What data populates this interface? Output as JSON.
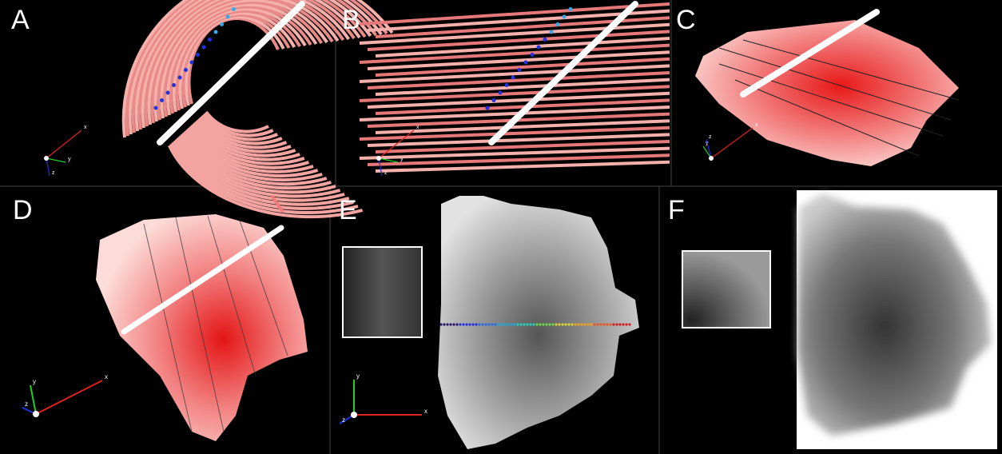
{
  "panels": [
    {
      "label": "A",
      "axes": [
        "x",
        "y",
        "z"
      ]
    },
    {
      "label": "B",
      "axes": [
        "x",
        "y",
        "z"
      ]
    },
    {
      "label": "C",
      "axes": [
        "x",
        "y",
        "z"
      ]
    },
    {
      "label": "D",
      "axes": [
        "x",
        "y",
        "z"
      ]
    },
    {
      "label": "E",
      "axes": [
        "x",
        "y",
        "z"
      ]
    },
    {
      "label": "F"
    }
  ]
}
